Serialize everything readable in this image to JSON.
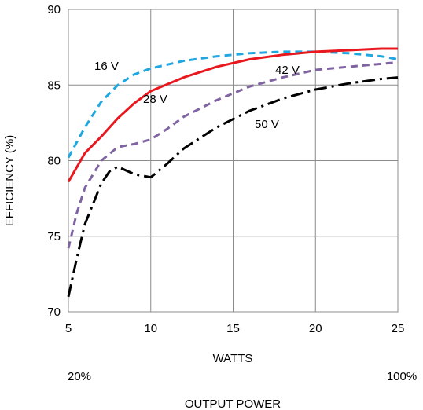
{
  "chart_data": {
    "type": "line",
    "title": "",
    "xlabel": "WATTS",
    "ylabel": "EFFICIENCY (%)",
    "xlim": [
      5,
      25
    ],
    "ylim": [
      70,
      90
    ],
    "x_ticks": [
      5,
      10,
      15,
      20,
      25
    ],
    "y_ticks": [
      70,
      75,
      80,
      85,
      90
    ],
    "x_tick_labels": [
      "5",
      "10",
      "15",
      "20",
      "25"
    ],
    "y_tick_labels": [
      "70",
      "75",
      "80",
      "85",
      "90"
    ],
    "grid": true,
    "secondary_axis": {
      "left_label": "20%",
      "right_label": "100%",
      "title": "OUTPUT POWER"
    },
    "series": [
      {
        "name": "16 V",
        "color": "#1fa8e0",
        "dash": "dashed",
        "points": [
          [
            5,
            80.2
          ],
          [
            6,
            82.2
          ],
          [
            7,
            83.9
          ],
          [
            8,
            85.0
          ],
          [
            9,
            85.7
          ],
          [
            10,
            86.1
          ],
          [
            12,
            86.6
          ],
          [
            14,
            86.9
          ],
          [
            16,
            87.1
          ],
          [
            18,
            87.2
          ],
          [
            20,
            87.2
          ],
          [
            22,
            87.1
          ],
          [
            24,
            86.9
          ],
          [
            25,
            86.7
          ]
        ]
      },
      {
        "name": "28 V",
        "color": "#e8181e",
        "dash": "solid",
        "points": [
          [
            5,
            78.6
          ],
          [
            6,
            80.5
          ],
          [
            7,
            81.6
          ],
          [
            8,
            82.8
          ],
          [
            9,
            83.8
          ],
          [
            10,
            84.6
          ],
          [
            12,
            85.5
          ],
          [
            14,
            86.2
          ],
          [
            16,
            86.7
          ],
          [
            18,
            87.0
          ],
          [
            20,
            87.2
          ],
          [
            22,
            87.3
          ],
          [
            24,
            87.4
          ],
          [
            25,
            87.4
          ]
        ]
      },
      {
        "name": "42 V",
        "color": "#8064a2",
        "dash": "dashed",
        "points": [
          [
            5,
            74.2
          ],
          [
            5.5,
            76.5
          ],
          [
            6,
            78.2
          ],
          [
            7,
            80.0
          ],
          [
            8,
            80.9
          ],
          [
            9,
            81.1
          ],
          [
            10,
            81.4
          ],
          [
            11,
            82.1
          ],
          [
            12,
            82.9
          ],
          [
            14,
            84.0
          ],
          [
            16,
            84.9
          ],
          [
            18,
            85.5
          ],
          [
            20,
            86.0
          ],
          [
            22,
            86.2
          ],
          [
            24,
            86.4
          ],
          [
            25,
            86.5
          ]
        ]
      },
      {
        "name": "50 V",
        "color": "#000000",
        "dash": "dashdot",
        "points": [
          [
            5,
            71.0
          ],
          [
            5.5,
            73.5
          ],
          [
            6,
            75.8
          ],
          [
            7,
            78.5
          ],
          [
            7.5,
            79.3
          ],
          [
            8,
            79.6
          ],
          [
            9,
            79.1
          ],
          [
            10,
            78.9
          ],
          [
            11,
            79.8
          ],
          [
            12,
            80.8
          ],
          [
            14,
            82.2
          ],
          [
            16,
            83.3
          ],
          [
            18,
            84.1
          ],
          [
            20,
            84.7
          ],
          [
            22,
            85.1
          ],
          [
            24,
            85.4
          ],
          [
            25,
            85.5
          ]
        ]
      }
    ]
  }
}
